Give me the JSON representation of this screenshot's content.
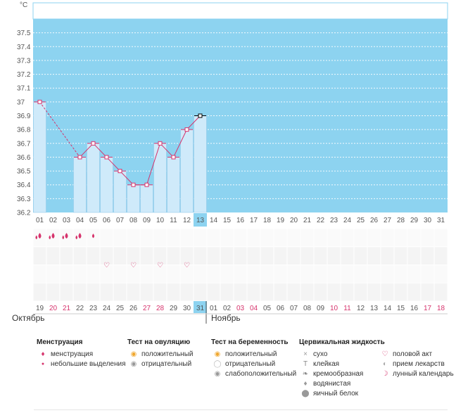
{
  "chart_data": {
    "type": "line",
    "ylabel": "°C",
    "ylim": [
      36.2,
      37.6
    ],
    "yticks": [
      36.2,
      36.3,
      36.4,
      36.5,
      36.6,
      36.7,
      36.8,
      36.9,
      37,
      37.1,
      37.2,
      37.3,
      37.4,
      37.5
    ],
    "ytick_labels": [
      "36.2",
      "36.3",
      "36.4",
      "36.5",
      "36.6",
      "36.7",
      "36.8",
      "36.9",
      "37",
      "37.1",
      "37.2",
      "37.3",
      "37.4",
      "37.5"
    ],
    "cycle_days": [
      "01",
      "02",
      "03",
      "04",
      "05",
      "06",
      "07",
      "08",
      "09",
      "10",
      "11",
      "12",
      "13",
      "14",
      "15",
      "16",
      "17",
      "18",
      "19",
      "20",
      "21",
      "22",
      "23",
      "24",
      "25",
      "26",
      "27",
      "28",
      "29",
      "30",
      "31"
    ],
    "current_day_index": 12,
    "series": [
      {
        "values": [
          37.0,
          null,
          null,
          36.6,
          36.7,
          36.6,
          36.5,
          36.4,
          36.4,
          36.7,
          36.6,
          36.8,
          36.9
        ]
      }
    ],
    "colors": {
      "plot_bg": "#8dd3f0",
      "bar_fill": "#cfeafa",
      "bar_stroke": "#8cc6e8",
      "line": "#d6336c",
      "current": "#8dd3f0",
      "weekend": "#d6336c",
      "grid": "#ffffff"
    }
  },
  "symptoms": {
    "menstruation_days": [
      0,
      1,
      2,
      3
    ],
    "light_days": [
      4
    ],
    "intercourse_days": [
      5,
      7,
      9,
      11
    ]
  },
  "calendar": {
    "dates": [
      "19",
      "20",
      "21",
      "22",
      "23",
      "24",
      "25",
      "26",
      "27",
      "28",
      "29",
      "30",
      "31",
      "01",
      "02",
      "03",
      "04",
      "05",
      "06",
      "07",
      "08",
      "09",
      "10",
      "11",
      "12",
      "13",
      "14",
      "15",
      "16",
      "17",
      "18"
    ],
    "weekend_indices": [
      1,
      2,
      8,
      9,
      15,
      16,
      22,
      23,
      29,
      30
    ],
    "current_index": 12,
    "month_prev": "Октябрь",
    "month_next": "Ноябрь"
  },
  "legend": {
    "menstruation": {
      "title": "Менструация",
      "items": [
        "менструация",
        "небольшие выделения"
      ]
    },
    "ovulation": {
      "title": "Тест на овуляцию",
      "items": [
        "положительный",
        "отрицательный"
      ]
    },
    "pregnancy": {
      "title": "Тест на беременность",
      "items": [
        "положительный",
        "отрицательный",
        "слабоположительный"
      ]
    },
    "cervical": {
      "title": "Цервикальная жидкость",
      "items": [
        "сухо",
        "клейкая",
        "кремообразная",
        "водянистая",
        "яичный белок"
      ]
    },
    "other": {
      "items": [
        "половой акт",
        "прием лекарств",
        "лунный календарь"
      ]
    }
  }
}
